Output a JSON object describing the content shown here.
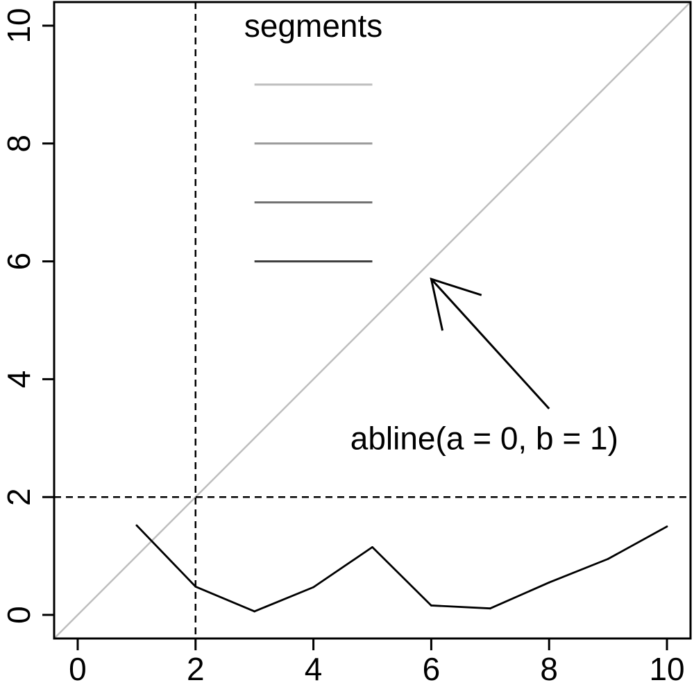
{
  "chart_data": {
    "type": "line",
    "title": "",
    "xlabel": "",
    "ylabel": "",
    "xlim": [
      -0.4,
      10.4
    ],
    "ylim": [
      -0.4,
      10.4
    ],
    "x_ticks": [
      0,
      2,
      4,
      6,
      8,
      10
    ],
    "y_ticks": [
      0,
      2,
      4,
      6,
      8,
      10
    ],
    "x_tick_labels": [
      "0",
      "2",
      "4",
      "6",
      "8",
      "10"
    ],
    "y_tick_labels": [
      "0",
      "2",
      "4",
      "6",
      "8",
      "10"
    ],
    "grid": false,
    "series": [
      {
        "x": [
          1,
          2,
          3,
          4,
          5,
          6,
          7,
          8,
          9,
          10
        ],
        "y": [
          1.52,
          0.48,
          0.06,
          0.47,
          1.15,
          0.16,
          0.11,
          0.55,
          0.95,
          1.5
        ],
        "color": "#000000"
      }
    ],
    "reference_lines": {
      "abline": {
        "a": 0,
        "b": 1,
        "color": "#bebebe"
      },
      "vertical": {
        "x": 2,
        "style": "dashed",
        "color": "#000000"
      },
      "horizontal": {
        "y": 2,
        "style": "dashed",
        "color": "#000000"
      }
    },
    "segments_label": "segments",
    "segments": [
      {
        "x0": 3,
        "x1": 5,
        "y": 9,
        "color": "#bebebe"
      },
      {
        "x0": 3,
        "x1": 5,
        "y": 8,
        "color": "#9a9a9a"
      },
      {
        "x0": 3,
        "x1": 5,
        "y": 7,
        "color": "#707070"
      },
      {
        "x0": 3,
        "x1": 5,
        "y": 6,
        "color": "#3d3d3d"
      }
    ],
    "arrow": {
      "from": [
        8,
        3.5
      ],
      "to": [
        6,
        5.7
      ],
      "color": "#000000"
    },
    "annotation": {
      "text": "abline(a = 0, b = 1)",
      "x": 6.9,
      "y": 3
    }
  }
}
